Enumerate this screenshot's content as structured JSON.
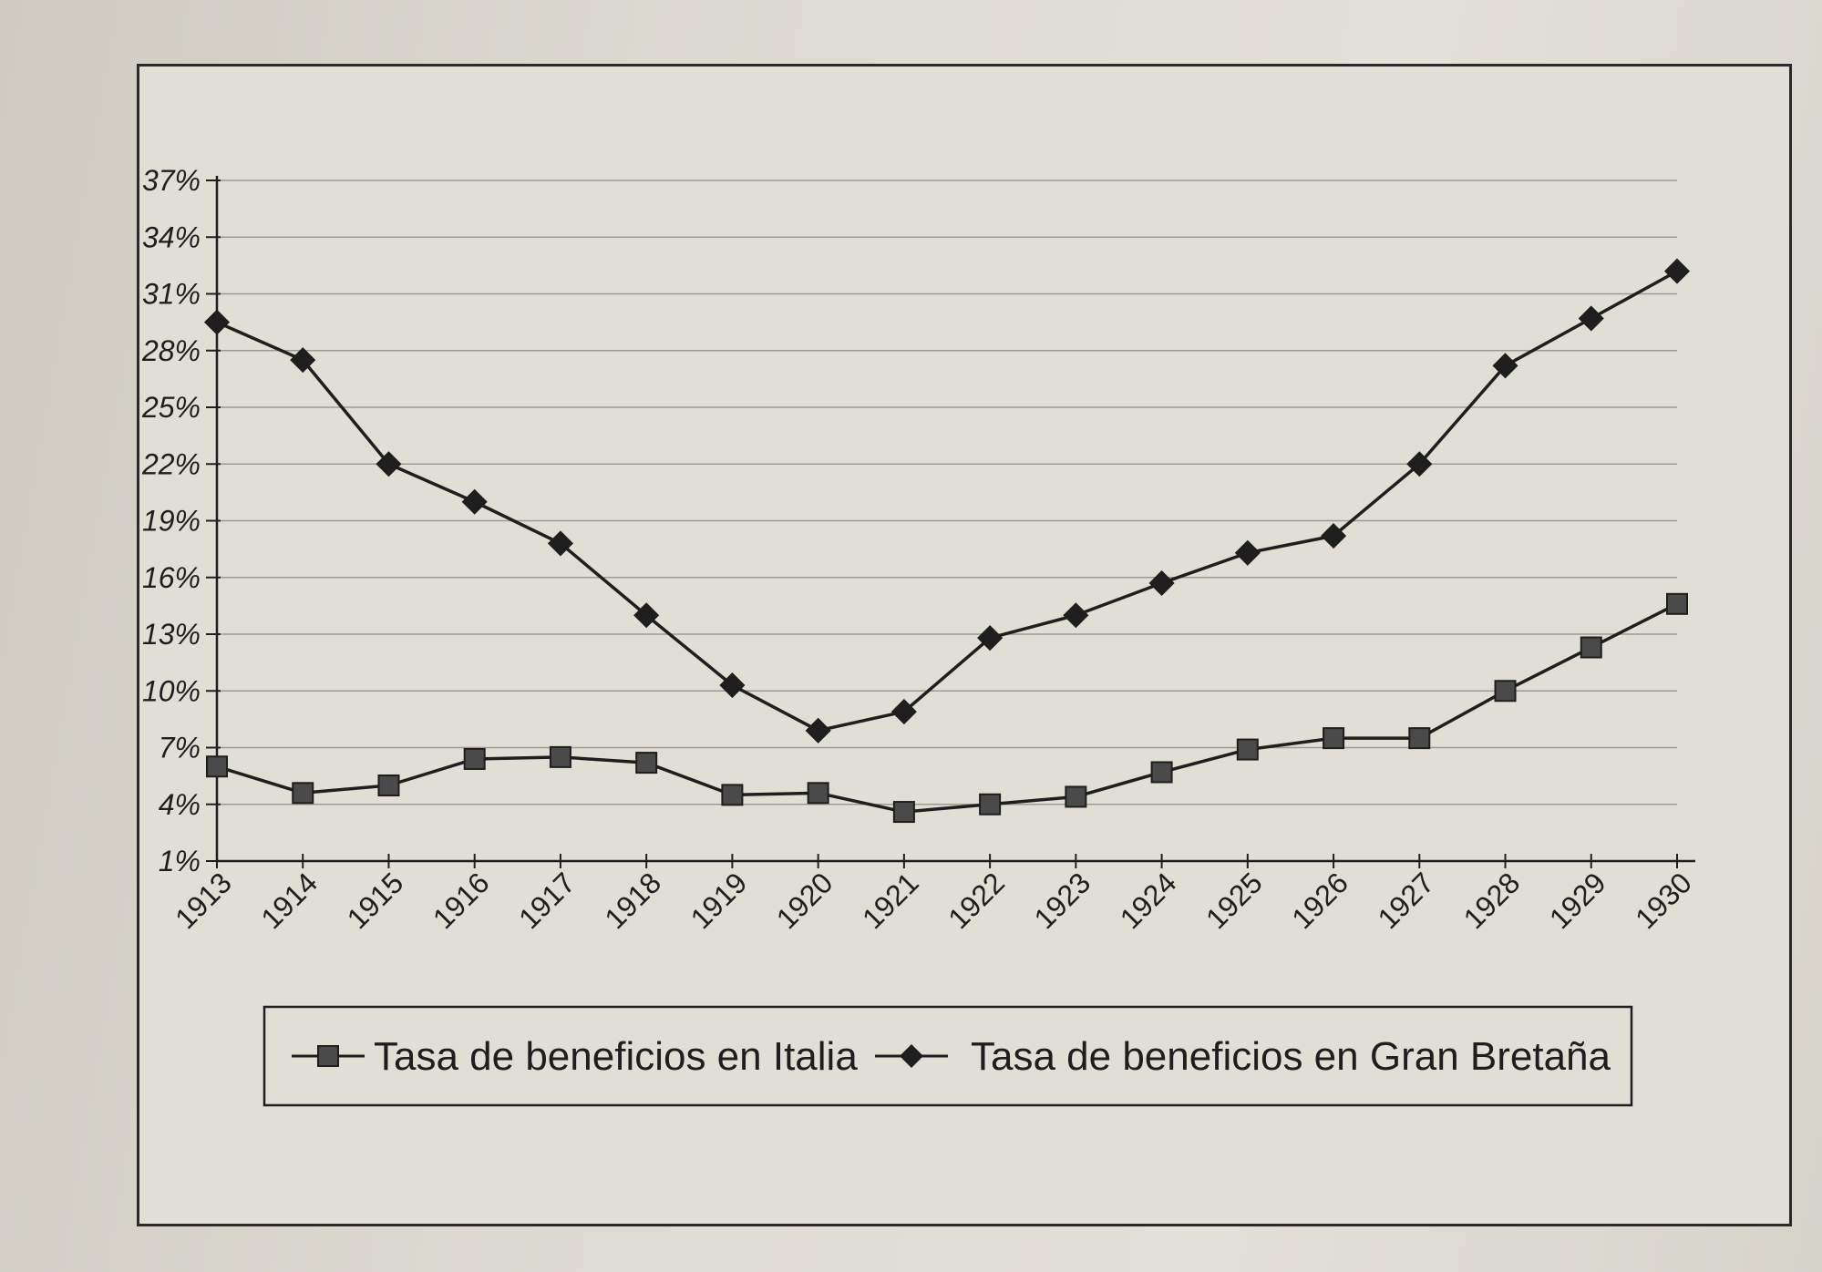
{
  "chart_data": {
    "type": "line",
    "title": "",
    "xlabel": "",
    "ylabel": "",
    "x": [
      "1913",
      "1914",
      "1915",
      "1916",
      "1917",
      "1918",
      "1919",
      "1920",
      "1921",
      "1922",
      "1923",
      "1924",
      "1925",
      "1926",
      "1927",
      "1928",
      "1929",
      "1930"
    ],
    "y_ticks": [
      "1%",
      "4%",
      "7%",
      "10%",
      "13%",
      "16%",
      "19%",
      "22%",
      "25%",
      "28%",
      "31%",
      "34%",
      "37%"
    ],
    "ylim": [
      1,
      37
    ],
    "grid": true,
    "legend_position": "bottom",
    "series": [
      {
        "name": "Tasa de beneficios en Italia",
        "marker": "square",
        "values": [
          6.0,
          4.6,
          5.0,
          6.4,
          6.5,
          6.2,
          4.5,
          4.6,
          3.6,
          4.0,
          4.4,
          5.7,
          6.9,
          7.5,
          7.5,
          10.0,
          12.3,
          14.6
        ]
      },
      {
        "name": "Tasa de beneficios en Gran Bretaña",
        "marker": "diamond",
        "values": [
          29.5,
          27.5,
          22.0,
          20.0,
          17.8,
          14.0,
          10.3,
          7.9,
          8.9,
          12.8,
          14.0,
          15.7,
          17.3,
          18.2,
          22.0,
          27.2,
          29.7,
          32.2
        ]
      }
    ]
  },
  "colors": {
    "line": "#1e1e1e",
    "marker_fill": "#4a4a4a",
    "grid": "#9c9a92"
  }
}
